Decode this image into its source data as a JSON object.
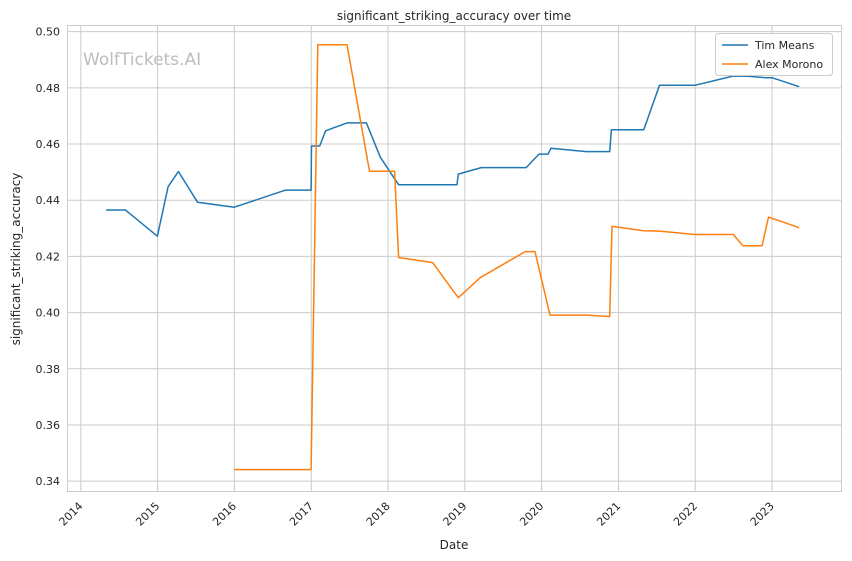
{
  "chart_data": {
    "type": "line",
    "title": "significant_striking_accuracy over time",
    "xlabel": "Date",
    "ylabel": "significant_striking_accuracy",
    "watermark": "WolfTickets.AI",
    "x_ticks": [
      "2014",
      "2015",
      "2016",
      "2017",
      "2018",
      "2019",
      "2020",
      "2021",
      "2022",
      "2023"
    ],
    "y_ticks": [
      "0.34",
      "0.36",
      "0.38",
      "0.40",
      "0.42",
      "0.44",
      "0.46",
      "0.48",
      "0.50"
    ],
    "xlim": [
      "2013-11-01",
      "2023-11-25"
    ],
    "ylim": [
      0.3365,
      0.502
    ],
    "grid": true,
    "legend_position": "top-right",
    "series": [
      {
        "name": "Tim Means",
        "color": "#1f77b4",
        "points": [
          [
            "2014-05-01",
            0.4365
          ],
          [
            "2014-08-01",
            0.4365
          ],
          [
            "2014-12-31",
            0.4272
          ],
          [
            "2015-02-20",
            0.4448
          ],
          [
            "2015-04-10",
            0.4502
          ],
          [
            "2015-07-10",
            0.4393
          ],
          [
            "2016-01-01",
            0.4375
          ],
          [
            "2016-09-01",
            0.4436
          ],
          [
            "2016-12-31",
            0.4436
          ],
          [
            "2017-01-02",
            0.4593
          ],
          [
            "2017-02-10",
            0.4593
          ],
          [
            "2017-03-10",
            0.4647
          ],
          [
            "2017-06-20",
            0.4675
          ],
          [
            "2017-09-20",
            0.4675
          ],
          [
            "2017-11-25",
            0.4553
          ],
          [
            "2018-02-20",
            0.4455
          ],
          [
            "2018-11-25",
            0.4455
          ],
          [
            "2018-12-01",
            0.4493
          ],
          [
            "2019-03-20",
            0.4516
          ],
          [
            "2019-10-20",
            0.4516
          ],
          [
            "2019-12-20",
            0.4564
          ],
          [
            "2020-02-01",
            0.4564
          ],
          [
            "2020-02-15",
            0.4585
          ],
          [
            "2020-08-01",
            0.4573
          ],
          [
            "2020-11-20",
            0.4573
          ],
          [
            "2020-11-28",
            0.4651
          ],
          [
            "2021-05-01",
            0.4651
          ],
          [
            "2021-07-15",
            0.4809
          ],
          [
            "2021-12-31",
            0.4809
          ],
          [
            "2022-07-01",
            0.4842
          ],
          [
            "2022-09-10",
            0.4841
          ],
          [
            "2022-12-01",
            0.4836
          ],
          [
            "2023-01-01",
            0.4836
          ],
          [
            "2023-05-10",
            0.4804
          ]
        ]
      },
      {
        "name": "Alex Morono",
        "color": "#ff7f0e",
        "points": [
          [
            "2016-01-01",
            0.3441
          ],
          [
            "2016-12-31",
            0.3441
          ],
          [
            "2017-02-01",
            0.4953
          ],
          [
            "2017-06-20",
            0.4953
          ],
          [
            "2017-10-05",
            0.4503
          ],
          [
            "2018-02-01",
            0.4503
          ],
          [
            "2018-02-20",
            0.4196
          ],
          [
            "2018-08-01",
            0.4178
          ],
          [
            "2018-12-01",
            0.4053
          ],
          [
            "2019-03-15",
            0.4124
          ],
          [
            "2019-10-15",
            0.4217
          ],
          [
            "2019-12-01",
            0.4217
          ],
          [
            "2020-02-10",
            0.3991
          ],
          [
            "2020-08-01",
            0.3991
          ],
          [
            "2020-11-20",
            0.3986
          ],
          [
            "2020-12-01",
            0.4307
          ],
          [
            "2021-05-01",
            0.4291
          ],
          [
            "2021-07-15",
            0.429
          ],
          [
            "2021-12-31",
            0.4278
          ],
          [
            "2022-07-01",
            0.4278
          ],
          [
            "2022-08-15",
            0.4238
          ],
          [
            "2022-11-15",
            0.4238
          ],
          [
            "2022-12-15",
            0.434
          ],
          [
            "2023-05-10",
            0.4302
          ]
        ]
      }
    ]
  }
}
